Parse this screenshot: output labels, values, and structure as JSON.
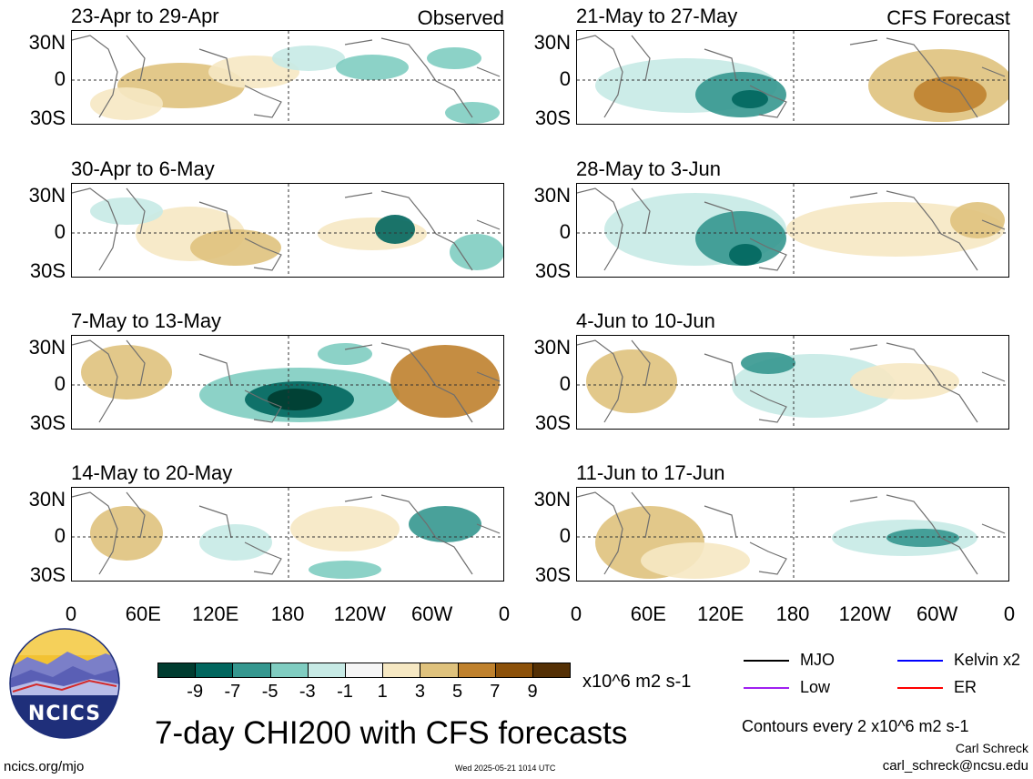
{
  "panels_left_tag": "Observed",
  "panels_right_tag": "CFS Forecast",
  "panels": [
    {
      "title": "23-Apr to 29-Apr",
      "col": 0,
      "row": 0
    },
    {
      "title": "30-Apr to 6-May",
      "col": 0,
      "row": 1
    },
    {
      "title": "7-May to 13-May",
      "col": 0,
      "row": 2
    },
    {
      "title": "14-May to 20-May",
      "col": 0,
      "row": 3
    },
    {
      "title": "21-May to 27-May",
      "col": 1,
      "row": 0
    },
    {
      "title": "28-May to 3-Jun",
      "col": 1,
      "row": 1
    },
    {
      "title": "4-Jun to 10-Jun",
      "col": 1,
      "row": 2
    },
    {
      "title": "11-Jun to 17-Jun",
      "col": 1,
      "row": 3
    }
  ],
  "lat_labels": [
    "30N",
    "0",
    "30S"
  ],
  "lon_labels": [
    "0",
    "60E",
    "120E",
    "180",
    "120W",
    "60W",
    "0"
  ],
  "colorbar": {
    "colors": [
      "#003c30",
      "#01665e",
      "#35978f",
      "#80cdc1",
      "#c7eae5",
      "#f5f5f5",
      "#f6e8c3",
      "#dfc27d",
      "#bf812d",
      "#8c510a",
      "#543005"
    ],
    "labels": [
      "-9",
      "-7",
      "-5",
      "-3",
      "-1",
      "1",
      "3",
      "5",
      "7",
      "9"
    ],
    "units": "x10^6 m2 s-1"
  },
  "legend": [
    {
      "label": "MJO",
      "color": "#000000"
    },
    {
      "label": "Kelvin x2",
      "color": "#0000ff"
    },
    {
      "label": "Low",
      "color": "#a020f0"
    },
    {
      "label": "ER",
      "color": "#ff0000"
    }
  ],
  "logo_text": "NCICS",
  "main_title": "7-day CHI200 with CFS forecasts",
  "contours_note": "Contours every 2 x10^6 m2 s-1",
  "author": "Carl Schreck",
  "email": "carl_schreck@ncsu.edu",
  "site": "ncics.org/mjo",
  "timestamp": "Wed 2025-05-21 1014 UTC"
}
